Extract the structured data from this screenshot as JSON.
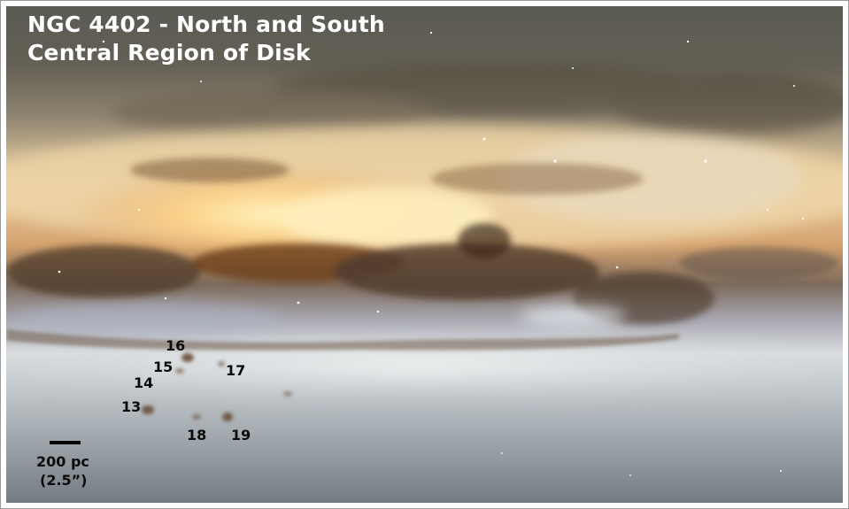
{
  "title_lines": [
    "NGC 4402 - North and South",
    "Central Region of Disk"
  ],
  "markers": [
    "13",
    "14",
    "15",
    "16",
    "17",
    "18",
    "19"
  ],
  "scale_bar": {
    "physical": "200 pc",
    "angular": "(2.5”)"
  },
  "colors": {
    "sky_top": "#5d5a4e",
    "disk_core": "#fff2b8",
    "dust_lane": "#5e3e22",
    "halo_bottom": "#a7aeb4",
    "label_text": "#0b0b0b",
    "title_text": "#ffffff"
  }
}
